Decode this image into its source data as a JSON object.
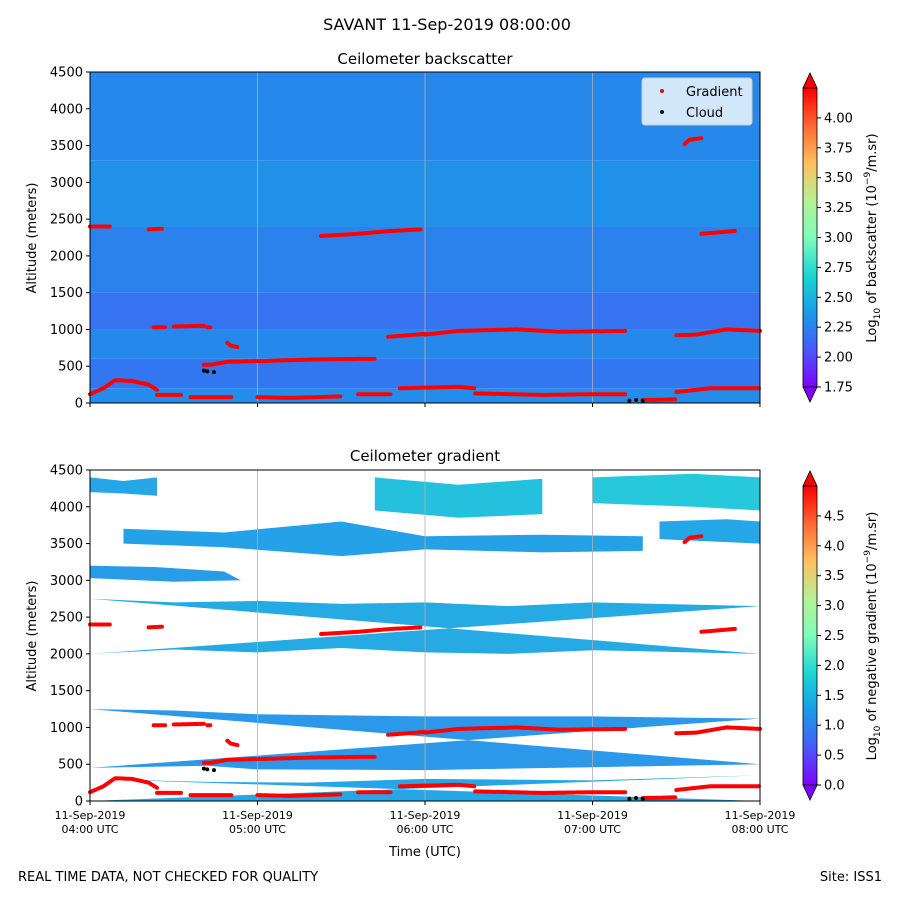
{
  "figure": {
    "suptitle": "SAVANT 11-Sep-2019 08:00:00",
    "footer_left": "REAL TIME DATA, NOT CHECKED FOR QUALITY",
    "footer_right": "Site: ISS1"
  },
  "colors": {
    "gradient_points": "#ff0000",
    "cloud_points": "#000000",
    "grid": "#b0b0b0",
    "map_low": "#7f00ff",
    "map_high": "#ff0000"
  },
  "chart_data": [
    {
      "type": "heatmap",
      "title": "Ceilometer backscatter",
      "xlabel": "",
      "ylabel": "Altitude (meters)",
      "xlim": [
        0,
        4
      ],
      "ylim": [
        0,
        4500
      ],
      "y_ticks": [
        0,
        500,
        1000,
        1500,
        2000,
        2500,
        3000,
        3500,
        4000,
        4500
      ],
      "x_ticks": [
        0,
        1,
        2,
        3,
        4
      ],
      "x_ticklabels": [],
      "grid": "vertical",
      "legend": {
        "position": "top-right",
        "entries": [
          "Gradient",
          "Cloud"
        ]
      },
      "colorbar": {
        "label": "Log10 of backscatter (10^-9/m.sr)",
        "range": [
          1.75,
          4.25
        ],
        "ticks": [
          1.75,
          2.0,
          2.25,
          2.5,
          2.75,
          3.0,
          3.25,
          3.5,
          3.75,
          4.0
        ],
        "ticklabels": [
          "1.75",
          "2.00",
          "2.25",
          "2.50",
          "2.75",
          "3.00",
          "3.25",
          "3.50",
          "3.75",
          "4.00"
        ],
        "extend": "both"
      },
      "background_levels": [
        {
          "altitude": [
            0,
            200
          ],
          "value": 2.3
        },
        {
          "altitude": [
            200,
            600
          ],
          "value": 2.2
        },
        {
          "altitude": [
            600,
            1000
          ],
          "value": 2.28
        },
        {
          "altitude": [
            1000,
            1500
          ],
          "value": 2.18
        },
        {
          "altitude": [
            1500,
            2400
          ],
          "value": 2.25
        },
        {
          "altitude": [
            2400,
            3300
          ],
          "value": 2.32
        },
        {
          "altitude": [
            3300,
            4500
          ],
          "value": 2.28
        }
      ]
    },
    {
      "type": "heatmap",
      "title": "Ceilometer gradient",
      "xlabel": "Time (UTC)",
      "ylabel": "Altitude (meters)",
      "xlim": [
        0,
        4
      ],
      "ylim": [
        0,
        4500
      ],
      "y_ticks": [
        0,
        500,
        1000,
        1500,
        2000,
        2500,
        3000,
        3500,
        4000,
        4500
      ],
      "x_ticks": [
        0,
        1,
        2,
        3,
        4
      ],
      "x_ticklabels": [
        [
          "11-Sep-2019",
          "04:00 UTC"
        ],
        [
          "11-Sep-2019",
          "05:00 UTC"
        ],
        [
          "11-Sep-2019",
          "06:00 UTC"
        ],
        [
          "11-Sep-2019",
          "07:00 UTC"
        ],
        [
          "11-Sep-2019",
          "08:00 UTC"
        ]
      ],
      "grid": "vertical",
      "colorbar": {
        "label": "Log10 of negative gradient (10^-9/m.sr)",
        "range": [
          0,
          5.0
        ],
        "ticks": [
          0.0,
          0.5,
          1.0,
          1.5,
          2.0,
          2.5,
          3.0,
          3.5,
          4.0,
          4.5
        ],
        "ticklabels": [
          "0.0",
          "0.5",
          "1.0",
          "1.5",
          "2.0",
          "2.5",
          "3.0",
          "3.5",
          "4.0",
          "4.5"
        ],
        "extend": "both"
      },
      "bands": [
        {
          "name": "band-surface",
          "top": [
            [
              0,
              300
            ],
            [
              0.7,
              260
            ],
            [
              1.3,
              250
            ],
            [
              2,
              300
            ],
            [
              3,
              280
            ],
            [
              4,
              350
            ]
          ],
          "bottom": [
            [
              0,
              0
            ],
            [
              4,
              0
            ]
          ],
          "value": 1.3
        },
        {
          "name": "band-low",
          "top": [
            [
              0,
              1250
            ],
            [
              0.5,
              1230
            ],
            [
              1,
              1180
            ],
            [
              2,
              1150
            ],
            [
              3,
              1150
            ],
            [
              4,
              1120
            ]
          ],
          "bottom": [
            [
              0,
              450
            ],
            [
              0.7,
              480
            ],
            [
              1,
              430
            ],
            [
              2,
              420
            ],
            [
              3,
              460
            ],
            [
              4,
              500
            ]
          ],
          "value": 1.15
        },
        {
          "name": "band-mid",
          "top": [
            [
              0,
              2750
            ],
            [
              0.5,
              2700
            ],
            [
              1,
              2720
            ],
            [
              1.5,
              2680
            ],
            [
              2,
              2700
            ],
            [
              2.5,
              2650
            ],
            [
              3,
              2700
            ],
            [
              4,
              2650
            ]
          ],
          "bottom": [
            [
              0,
              2000
            ],
            [
              0.5,
              2060
            ],
            [
              1,
              2020
            ],
            [
              1.5,
              2080
            ],
            [
              2,
              2020
            ],
            [
              2.5,
              2000
            ],
            [
              3,
              2050
            ],
            [
              4,
              2000
            ]
          ],
          "value": 1.35
        },
        {
          "name": "band-3200",
          "top": [
            [
              0,
              3200
            ],
            [
              0.4,
              3180
            ],
            [
              0.8,
              3120
            ],
            [
              0.9,
              3000
            ]
          ],
          "bottom": [
            [
              0.9,
              3000
            ],
            [
              0.5,
              2980
            ],
            [
              0,
              3030
            ]
          ],
          "value": 1.2
        },
        {
          "name": "band-3500",
          "top": [
            [
              0.2,
              3700
            ],
            [
              0.8,
              3650
            ],
            [
              1.5,
              3800
            ],
            [
              2.0,
              3600
            ],
            [
              2.7,
              3620
            ],
            [
              3.3,
              3600
            ]
          ],
          "bottom": [
            [
              3.3,
              3400
            ],
            [
              2.7,
              3380
            ],
            [
              2.0,
              3420
            ],
            [
              1.5,
              3330
            ],
            [
              0.8,
              3450
            ],
            [
              0.2,
              3500
            ]
          ],
          "value": 1.25
        },
        {
          "name": "band-3700-right",
          "top": [
            [
              3.4,
              3800
            ],
            [
              3.8,
              3830
            ],
            [
              4,
              3800
            ]
          ],
          "bottom": [
            [
              4,
              3500
            ],
            [
              3.8,
              3520
            ],
            [
              3.4,
              3560
            ]
          ],
          "value": 1.3
        },
        {
          "name": "band-top",
          "top": [
            [
              0,
              4400
            ],
            [
              0.2,
              4350
            ],
            [
              0.4,
              4400
            ]
          ],
          "bottom": [
            [
              0.4,
              4150
            ],
            [
              0.2,
              4180
            ],
            [
              0,
              4200
            ]
          ],
          "value": 1.3
        },
        {
          "name": "band-top-mid",
          "top": [
            [
              1.7,
              4400
            ],
            [
              2.2,
              4300
            ],
            [
              2.7,
              4380
            ]
          ],
          "bottom": [
            [
              2.7,
              3900
            ],
            [
              2.2,
              3850
            ],
            [
              1.7,
              3950
            ]
          ],
          "value": 1.6
        },
        {
          "name": "band-top-right",
          "top": [
            [
              3.0,
              4400
            ],
            [
              3.6,
              4450
            ],
            [
              4,
              4400
            ]
          ],
          "bottom": [
            [
              4,
              3950
            ],
            [
              3.6,
              4000
            ],
            [
              3.0,
              4050
            ]
          ],
          "value": 1.7
        }
      ]
    }
  ],
  "overlays": {
    "gradient_series": [
      [
        [
          0.0,
          2400
        ],
        [
          0.12,
          2400
        ]
      ],
      [
        [
          0.35,
          2360
        ],
        [
          0.43,
          2370
        ]
      ],
      [
        [
          1.38,
          2270
        ],
        [
          1.6,
          2300
        ],
        [
          1.8,
          2340
        ],
        [
          1.98,
          2360
        ]
      ],
      [
        [
          3.65,
          2300
        ],
        [
          3.85,
          2340
        ]
      ],
      [
        [
          3.55,
          3520
        ],
        [
          3.58,
          3580
        ],
        [
          3.65,
          3600
        ]
      ],
      [
        [
          0.38,
          1030
        ],
        [
          0.45,
          1030
        ]
      ],
      [
        [
          0.5,
          1040
        ],
        [
          0.68,
          1050
        ]
      ],
      [
        [
          0.7,
          1030
        ],
        [
          0.72,
          1030
        ]
      ],
      [
        [
          1.78,
          900
        ],
        [
          2.0,
          940
        ]
      ],
      [
        [
          0.82,
          820
        ],
        [
          0.84,
          780
        ],
        [
          0.88,
          760
        ]
      ],
      [
        [
          2.0,
          930
        ],
        [
          2.2,
          980
        ],
        [
          2.55,
          1000
        ],
        [
          2.8,
          970
        ],
        [
          3.2,
          980
        ]
      ],
      [
        [
          3.5,
          920
        ],
        [
          3.62,
          930
        ],
        [
          3.8,
          1000
        ],
        [
          4.0,
          980
        ]
      ],
      [
        [
          0.68,
          520
        ],
        [
          0.72,
          520
        ],
        [
          0.82,
          560
        ],
        [
          1.0,
          570
        ],
        [
          1.3,
          590
        ],
        [
          1.6,
          600
        ],
        [
          1.7,
          600
        ]
      ],
      [
        [
          0.0,
          120
        ],
        [
          0.08,
          200
        ],
        [
          0.15,
          310
        ],
        [
          0.25,
          300
        ],
        [
          0.35,
          250
        ],
        [
          0.4,
          180
        ]
      ],
      [
        [
          0.4,
          110
        ],
        [
          0.55,
          110
        ]
      ],
      [
        [
          0.6,
          80
        ],
        [
          0.85,
          80
        ]
      ],
      [
        [
          1.0,
          80
        ],
        [
          1.2,
          70
        ],
        [
          1.5,
          90
        ]
      ],
      [
        [
          1.6,
          120
        ],
        [
          1.8,
          120
        ]
      ],
      [
        [
          1.85,
          200
        ],
        [
          2.2,
          220
        ],
        [
          2.3,
          200
        ]
      ],
      [
        [
          2.3,
          130
        ],
        [
          2.7,
          110
        ],
        [
          3.0,
          120
        ],
        [
          3.2,
          120
        ]
      ],
      [
        [
          3.3,
          40
        ],
        [
          3.5,
          50
        ]
      ],
      [
        [
          3.5,
          150
        ],
        [
          3.7,
          200
        ],
        [
          4.0,
          200
        ]
      ]
    ],
    "cloud_series": [
      [
        [
          0.68,
          440
        ],
        [
          0.7,
          430
        ],
        [
          0.74,
          420
        ]
      ],
      [
        [
          3.22,
          30
        ],
        [
          3.26,
          40
        ],
        [
          3.3,
          30
        ]
      ]
    ]
  }
}
